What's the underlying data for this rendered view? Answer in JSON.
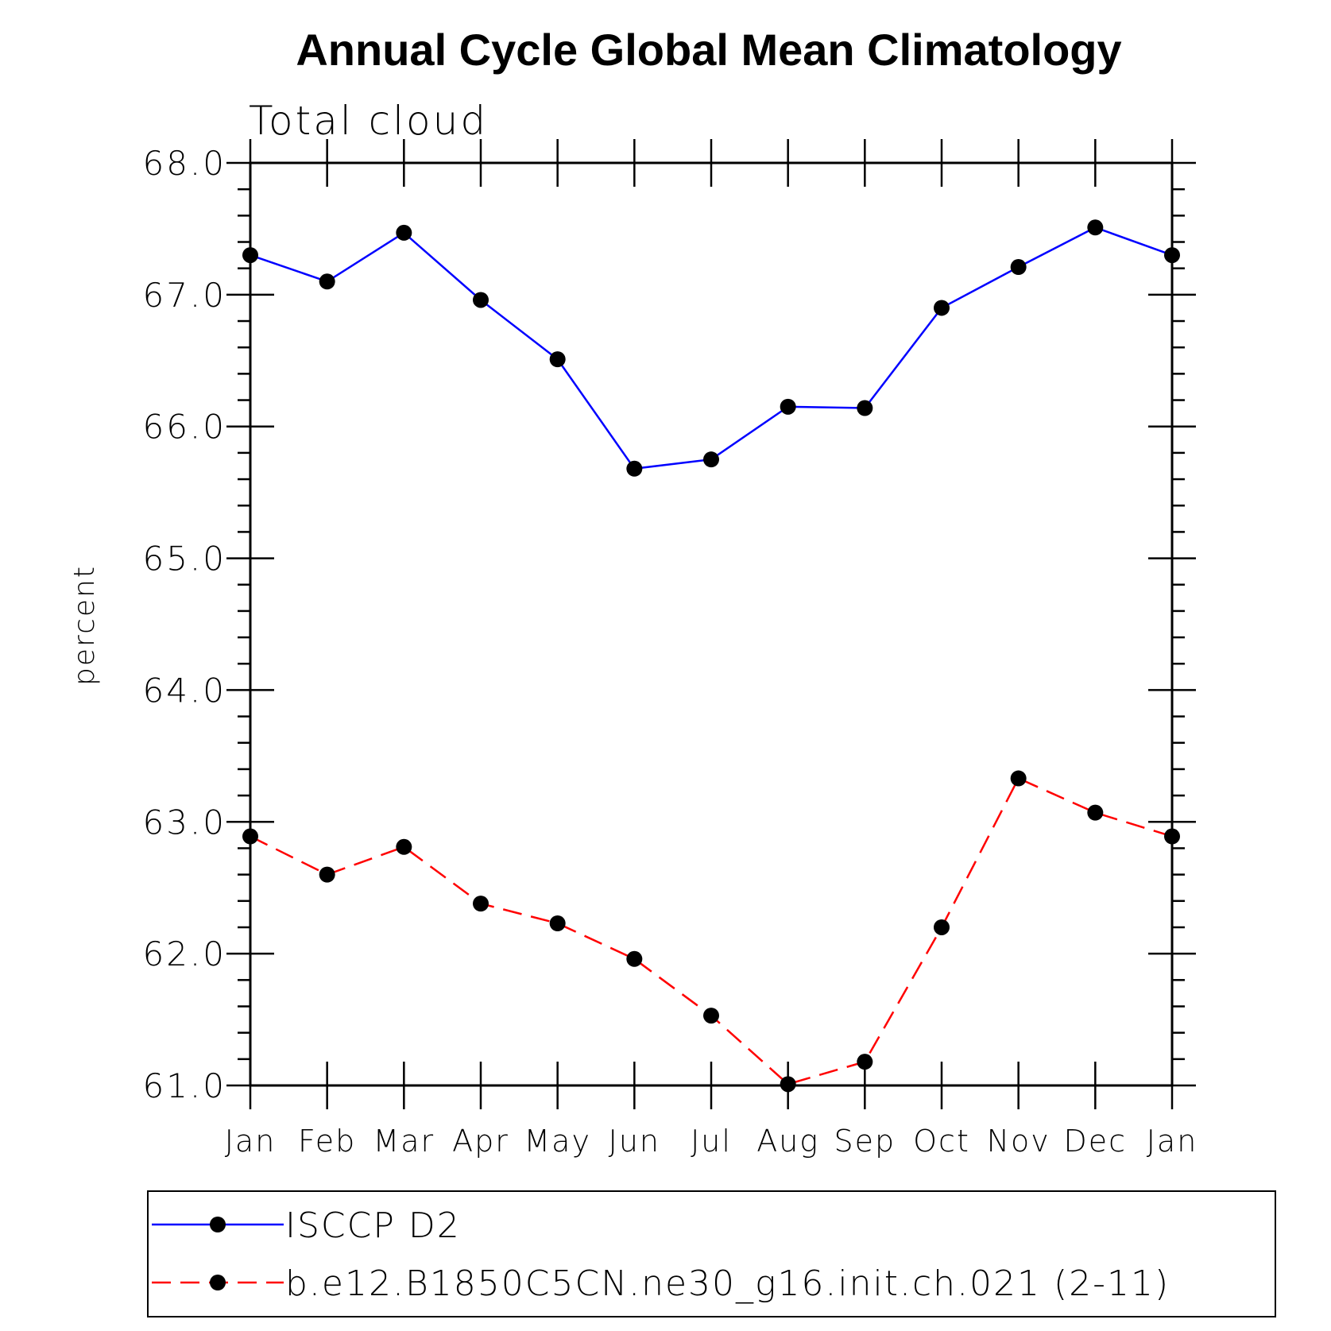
{
  "chart_data": {
    "type": "line",
    "title": "Annual Cycle Global Mean Climatology",
    "subtitle": "Total cloud",
    "xlabel": "",
    "ylabel": "percent",
    "ylim": [
      61.0,
      68.0
    ],
    "yticks": [
      "61.0",
      "62.0",
      "63.0",
      "64.0",
      "65.0",
      "66.0",
      "67.0",
      "68.0"
    ],
    "categories": [
      "Jan",
      "Feb",
      "Mar",
      "Apr",
      "May",
      "Jun",
      "Jul",
      "Aug",
      "Sep",
      "Oct",
      "Nov",
      "Dec",
      "Jan"
    ],
    "series": [
      {
        "name": "ISCCP D2",
        "color": "#0000ff",
        "line_style": "solid",
        "marker": "filled-circle",
        "values": [
          67.3,
          67.1,
          67.47,
          66.96,
          66.51,
          65.68,
          65.75,
          66.15,
          66.14,
          66.9,
          67.21,
          67.51,
          67.3
        ]
      },
      {
        "name": "b.e12.B1850C5CN.ne30_g16.init.ch.021 (2-11)",
        "color": "#ff0000",
        "line_style": "dashed",
        "marker": "filled-circle",
        "values": [
          62.89,
          62.6,
          62.81,
          62.38,
          62.23,
          61.96,
          61.53,
          61.01,
          61.18,
          62.2,
          63.33,
          63.07,
          62.89
        ]
      }
    ],
    "grid": false,
    "legend_position": "bottom"
  }
}
